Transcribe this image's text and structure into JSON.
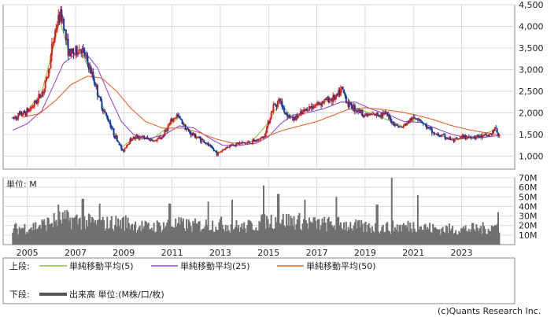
{
  "chart_data": [
    {
      "type": "candlestick",
      "panel": "price",
      "ylim": [
        700,
        4500
      ],
      "y_ticks": [
        "1,000",
        "1,500",
        "2,000",
        "2,500",
        "3,000",
        "3,500",
        "4,000",
        "4,500"
      ],
      "y_tick_values": [
        1000,
        1500,
        2000,
        2500,
        3000,
        3500,
        4000,
        4500
      ],
      "grid": true,
      "price_keypoints": [
        [
          2004.4,
          1870
        ],
        [
          2004.6,
          1930
        ],
        [
          2004.9,
          2000
        ],
        [
          2005.1,
          2080
        ],
        [
          2005.4,
          2280
        ],
        [
          2005.7,
          2550
        ],
        [
          2005.9,
          3000
        ],
        [
          2006.05,
          3600
        ],
        [
          2006.2,
          4000
        ],
        [
          2006.35,
          4250
        ],
        [
          2006.5,
          4150
        ],
        [
          2006.6,
          3700
        ],
        [
          2006.75,
          3350
        ],
        [
          2007.0,
          3400
        ],
        [
          2007.2,
          3500
        ],
        [
          2007.4,
          3300
        ],
        [
          2007.6,
          3000
        ],
        [
          2007.8,
          2700
        ],
        [
          2008.0,
          2300
        ],
        [
          2008.2,
          2000
        ],
        [
          2008.4,
          1800
        ],
        [
          2008.6,
          1500
        ],
        [
          2008.8,
          1300
        ],
        [
          2008.95,
          1100
        ],
        [
          2009.1,
          1250
        ],
        [
          2009.3,
          1400
        ],
        [
          2009.6,
          1450
        ],
        [
          2010.0,
          1400
        ],
        [
          2010.3,
          1350
        ],
        [
          2010.6,
          1450
        ],
        [
          2010.9,
          1750
        ],
        [
          2011.2,
          1950
        ],
        [
          2011.4,
          1800
        ],
        [
          2011.7,
          1550
        ],
        [
          2012.0,
          1450
        ],
        [
          2012.3,
          1350
        ],
        [
          2012.6,
          1200
        ],
        [
          2012.9,
          1050
        ],
        [
          2013.1,
          1150
        ],
        [
          2013.4,
          1250
        ],
        [
          2013.8,
          1300
        ],
        [
          2014.1,
          1300
        ],
        [
          2014.5,
          1350
        ],
        [
          2014.8,
          1450
        ],
        [
          2015.0,
          1800
        ],
        [
          2015.2,
          2150
        ],
        [
          2015.45,
          2300
        ],
        [
          2015.7,
          2000
        ],
        [
          2016.0,
          1850
        ],
        [
          2016.3,
          1950
        ],
        [
          2016.6,
          2100
        ],
        [
          2017.0,
          2200
        ],
        [
          2017.4,
          2300
        ],
        [
          2017.8,
          2350
        ],
        [
          2018.05,
          2550
        ],
        [
          2018.3,
          2200
        ],
        [
          2018.6,
          2100
        ],
        [
          2019.0,
          1950
        ],
        [
          2019.4,
          1950
        ],
        [
          2019.8,
          2000
        ],
        [
          2020.2,
          1750
        ],
        [
          2020.5,
          1650
        ],
        [
          2020.9,
          1850
        ],
        [
          2021.2,
          1900
        ],
        [
          2021.5,
          1700
        ],
        [
          2021.9,
          1500
        ],
        [
          2022.3,
          1450
        ],
        [
          2022.7,
          1350
        ],
        [
          2023.1,
          1450
        ],
        [
          2023.5,
          1450
        ],
        [
          2023.9,
          1450
        ],
        [
          2024.2,
          1500
        ],
        [
          2024.4,
          1650
        ],
        [
          2024.6,
          1380
        ]
      ],
      "ma_keypoints": {
        "ma5": [
          [
            2004.4,
            1880
          ],
          [
            2005.0,
            2040
          ],
          [
            2005.6,
            2480
          ],
          [
            2006.1,
            3550
          ],
          [
            2006.35,
            4150
          ],
          [
            2006.7,
            3450
          ],
          [
            2007.2,
            3450
          ],
          [
            2007.7,
            2850
          ],
          [
            2008.3,
            1900
          ],
          [
            2008.9,
            1200
          ],
          [
            2009.4,
            1400
          ],
          [
            2010.2,
            1400
          ],
          [
            2010.9,
            1700
          ],
          [
            2011.3,
            1900
          ],
          [
            2011.8,
            1550
          ],
          [
            2012.5,
            1250
          ],
          [
            2012.9,
            1080
          ],
          [
            2013.5,
            1250
          ],
          [
            2014.3,
            1330
          ],
          [
            2015.0,
            1780
          ],
          [
            2015.45,
            2250
          ],
          [
            2016.0,
            1880
          ],
          [
            2016.6,
            2080
          ],
          [
            2017.5,
            2300
          ],
          [
            2018.05,
            2500
          ],
          [
            2018.6,
            2120
          ],
          [
            2019.4,
            1950
          ],
          [
            2020.2,
            1780
          ],
          [
            2020.6,
            1680
          ],
          [
            2021.2,
            1880
          ],
          [
            2021.9,
            1520
          ],
          [
            2022.7,
            1370
          ],
          [
            2023.5,
            1450
          ],
          [
            2024.4,
            1600
          ],
          [
            2024.6,
            1420
          ]
        ],
        "ma25": [
          [
            2004.4,
            1600
          ],
          [
            2005.0,
            1750
          ],
          [
            2005.6,
            2050
          ],
          [
            2006.1,
            2650
          ],
          [
            2006.5,
            3150
          ],
          [
            2007.0,
            3350
          ],
          [
            2007.4,
            3400
          ],
          [
            2007.9,
            3050
          ],
          [
            2008.4,
            2400
          ],
          [
            2008.9,
            1800
          ],
          [
            2009.4,
            1500
          ],
          [
            2010.0,
            1400
          ],
          [
            2010.7,
            1500
          ],
          [
            2011.3,
            1700
          ],
          [
            2011.9,
            1650
          ],
          [
            2012.6,
            1400
          ],
          [
            2013.1,
            1250
          ],
          [
            2013.8,
            1250
          ],
          [
            2014.5,
            1300
          ],
          [
            2015.0,
            1450
          ],
          [
            2015.5,
            1750
          ],
          [
            2016.0,
            1950
          ],
          [
            2016.6,
            2000
          ],
          [
            2017.3,
            2100
          ],
          [
            2018.0,
            2250
          ],
          [
            2018.6,
            2250
          ],
          [
            2019.3,
            2080
          ],
          [
            2020.0,
            1950
          ],
          [
            2020.6,
            1800
          ],
          [
            2021.3,
            1780
          ],
          [
            2021.9,
            1650
          ],
          [
            2022.6,
            1500
          ],
          [
            2023.3,
            1420
          ],
          [
            2024.0,
            1440
          ],
          [
            2024.6,
            1480
          ]
        ],
        "ma50": [
          [
            2004.8,
            1900
          ],
          [
            2005.5,
            1980
          ],
          [
            2006.2,
            2300
          ],
          [
            2006.8,
            2650
          ],
          [
            2007.5,
            2850
          ],
          [
            2008.1,
            2800
          ],
          [
            2008.7,
            2500
          ],
          [
            2009.3,
            2100
          ],
          [
            2009.9,
            1800
          ],
          [
            2010.6,
            1650
          ],
          [
            2011.4,
            1650
          ],
          [
            2012.1,
            1550
          ],
          [
            2012.8,
            1400
          ],
          [
            2013.5,
            1300
          ],
          [
            2014.2,
            1320
          ],
          [
            2014.9,
            1450
          ],
          [
            2015.6,
            1600
          ],
          [
            2016.3,
            1700
          ],
          [
            2017.0,
            1800
          ],
          [
            2017.7,
            1950
          ],
          [
            2018.3,
            2080
          ],
          [
            2019.0,
            2120
          ],
          [
            2019.7,
            2080
          ],
          [
            2020.4,
            2030
          ],
          [
            2021.1,
            1950
          ],
          [
            2021.8,
            1850
          ],
          [
            2022.5,
            1720
          ],
          [
            2023.2,
            1620
          ],
          [
            2023.9,
            1550
          ],
          [
            2024.6,
            1490
          ]
        ]
      }
    },
    {
      "type": "bar",
      "panel": "volume",
      "unit_label": "単位: M",
      "ylim": [
        0,
        70
      ],
      "y_ticks": [
        "10M",
        "20M",
        "30M",
        "40M",
        "50M",
        "60M",
        "70M"
      ],
      "y_tick_values": [
        10,
        20,
        30,
        40,
        50,
        60,
        70
      ],
      "x_ticks": [
        "2005",
        "2007",
        "2009",
        "2011",
        "2013",
        "2015",
        "2017",
        "2019",
        "2021",
        "2023"
      ],
      "x_tick_values": [
        2005,
        2007,
        2009,
        2011,
        2013,
        2015,
        2017,
        2019,
        2021,
        2023
      ],
      "xlim": [
        2004.0,
        2025.2
      ],
      "volume_baseline_keypoints": [
        [
          2004.4,
          18
        ],
        [
          2005.5,
          22
        ],
        [
          2006.4,
          30
        ],
        [
          2007.2,
          28
        ],
        [
          2008.0,
          24
        ],
        [
          2009.0,
          26
        ],
        [
          2010.0,
          20
        ],
        [
          2011.0,
          24
        ],
        [
          2012.0,
          22
        ],
        [
          2013.0,
          24
        ],
        [
          2014.0,
          20
        ],
        [
          2015.0,
          28
        ],
        [
          2016.0,
          28
        ],
        [
          2017.0,
          24
        ],
        [
          2018.0,
          24
        ],
        [
          2019.0,
          20
        ],
        [
          2020.0,
          20
        ],
        [
          2021.0,
          22
        ],
        [
          2022.0,
          18
        ],
        [
          2023.0,
          18
        ],
        [
          2024.0,
          19
        ],
        [
          2024.6,
          22
        ]
      ],
      "volume_spikes": [
        [
          2006.3,
          42
        ],
        [
          2007.3,
          48
        ],
        [
          2008.0,
          43
        ],
        [
          2010.9,
          43
        ],
        [
          2012.5,
          45
        ],
        [
          2013.5,
          47
        ],
        [
          2014.8,
          62
        ],
        [
          2015.4,
          53
        ],
        [
          2016.5,
          47
        ],
        [
          2017.8,
          50
        ],
        [
          2019.5,
          42
        ],
        [
          2020.1,
          70
        ],
        [
          2021.2,
          52
        ],
        [
          2024.5,
          34
        ]
      ]
    }
  ],
  "legend": {
    "upper_label": "上段:",
    "lower_label": "下段:",
    "items": [
      {
        "label": "単純移動平均(5)",
        "color": "#8cc63f"
      },
      {
        "label": "単純移動平均(25)",
        "color": "#9a4ccf"
      },
      {
        "label": "単純移動平均(50)",
        "color": "#e8622c"
      }
    ],
    "volume_item": {
      "label": "出来高 単位:(M株/口/枚)",
      "color": "#555555"
    }
  },
  "copyright": "(c)Quants Research Inc.",
  "colors": {
    "up": "#e2201b",
    "down": "#133ba0",
    "volume": "#707070",
    "grid": "#d9d9d9",
    "frame": "#8a8a8a"
  }
}
